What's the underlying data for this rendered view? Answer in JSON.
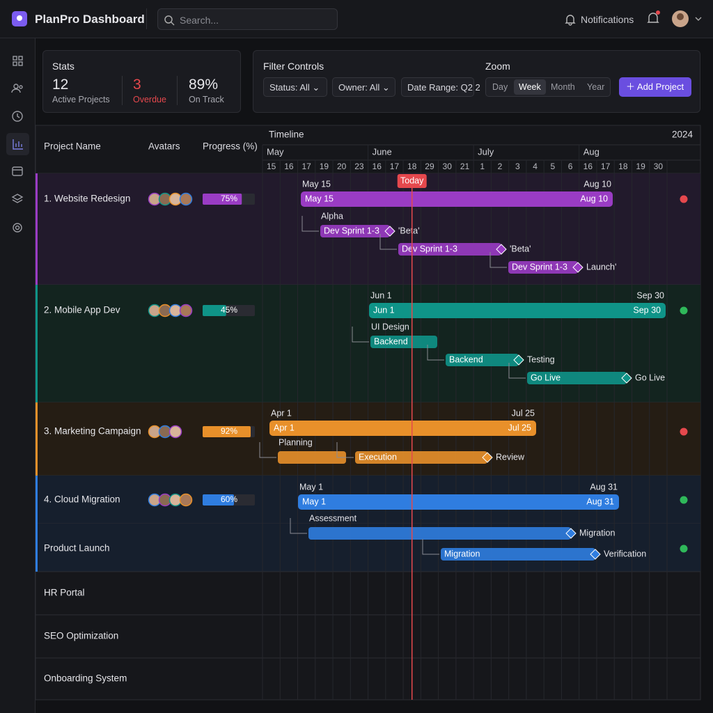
{
  "header": {
    "brand": "PlanPro Dashboard",
    "search": "Search...",
    "notifications": "Notifications"
  },
  "stats": {
    "title": "Stats",
    "items": [
      {
        "value": "12",
        "label": "Active Projects"
      },
      {
        "value": "3",
        "label": "Overdue"
      },
      {
        "value": "89%",
        "label": "On Track"
      }
    ]
  },
  "filters": {
    "title": "Filter Controls",
    "buttons": [
      "Status: All",
      "Owner: All",
      "Date Range: Q2 2"
    ]
  },
  "zoom": {
    "title": "Zoom",
    "options": [
      "Day",
      "Week",
      "Month",
      "Year"
    ]
  },
  "add_button": "Add Project",
  "gantt": {
    "columns": [
      "Project Name",
      "Avatars",
      "Progress (%)"
    ],
    "timeline_title": "Timeline",
    "year": "2024",
    "months": [
      "May",
      "June",
      "July",
      "Aug"
    ],
    "weeks": [
      "15",
      "16",
      "17",
      "19",
      "20",
      "23",
      "16",
      "17",
      "18",
      "29",
      "30",
      "21",
      "1",
      "2",
      "3",
      "4",
      "5",
      "6",
      "16",
      "17",
      "18",
      "19",
      "30"
    ],
    "today": "Today",
    "projects": [
      {
        "name": "1. Website Redesign",
        "progress": 75,
        "progress_label": "75%",
        "start": "May 15",
        "end": "Aug 10",
        "color": "#9a3cc4",
        "status_color": "#e5484d",
        "tasks": [
          {
            "label": "Alpha",
            "bar": "Dev Sprint 1-3",
            "milestone": "'Beta'"
          },
          {
            "bar": "Dev Sprint 1-3",
            "milestone": "'Beta'"
          },
          {
            "bar": "Dev Sprint 1-3",
            "milestone": "Launch'"
          }
        ]
      },
      {
        "name": "2. Mobile App Dev",
        "progress": 45,
        "progress_label": "45%",
        "start": "Jun 1",
        "end": "Sep 30",
        "color": "#0f9488",
        "status_color": "#2fb85a",
        "tasks": [
          {
            "label": "UI Design",
            "bar": "Backend"
          },
          {
            "bar": "Backend",
            "milestone": "Testing"
          },
          {
            "bar": "Go Live",
            "milestone": "Go Live"
          }
        ]
      },
      {
        "name": "3. Marketing Campaign",
        "progress": 92,
        "progress_label": "92%",
        "start": "Apr 1",
        "end": "Jul 25",
        "color": "#e8902a",
        "status_color": "#e5484d",
        "tasks": [
          {
            "label": "Planning"
          },
          {
            "bar": "Execution",
            "milestone": "Review"
          }
        ]
      },
      {
        "name": "4. Cloud Migration",
        "progress": 60,
        "progress_label": "60%",
        "start": "May 1",
        "end": "Aug 31",
        "color": "#2f7de0",
        "status_color": "#2fb85a",
        "tasks": [
          {
            "label": "Assessment",
            "milestone": "Migration"
          }
        ]
      },
      {
        "name": "Product Launch",
        "color": "#2f7de0",
        "status_color": "#2fb85a",
        "tasks": [
          {
            "bar": "Migration",
            "milestone": "Verification"
          }
        ]
      },
      {
        "name": "HR Portal"
      },
      {
        "name": "SEO Optimization"
      },
      {
        "name": "Onboarding System"
      }
    ]
  }
}
